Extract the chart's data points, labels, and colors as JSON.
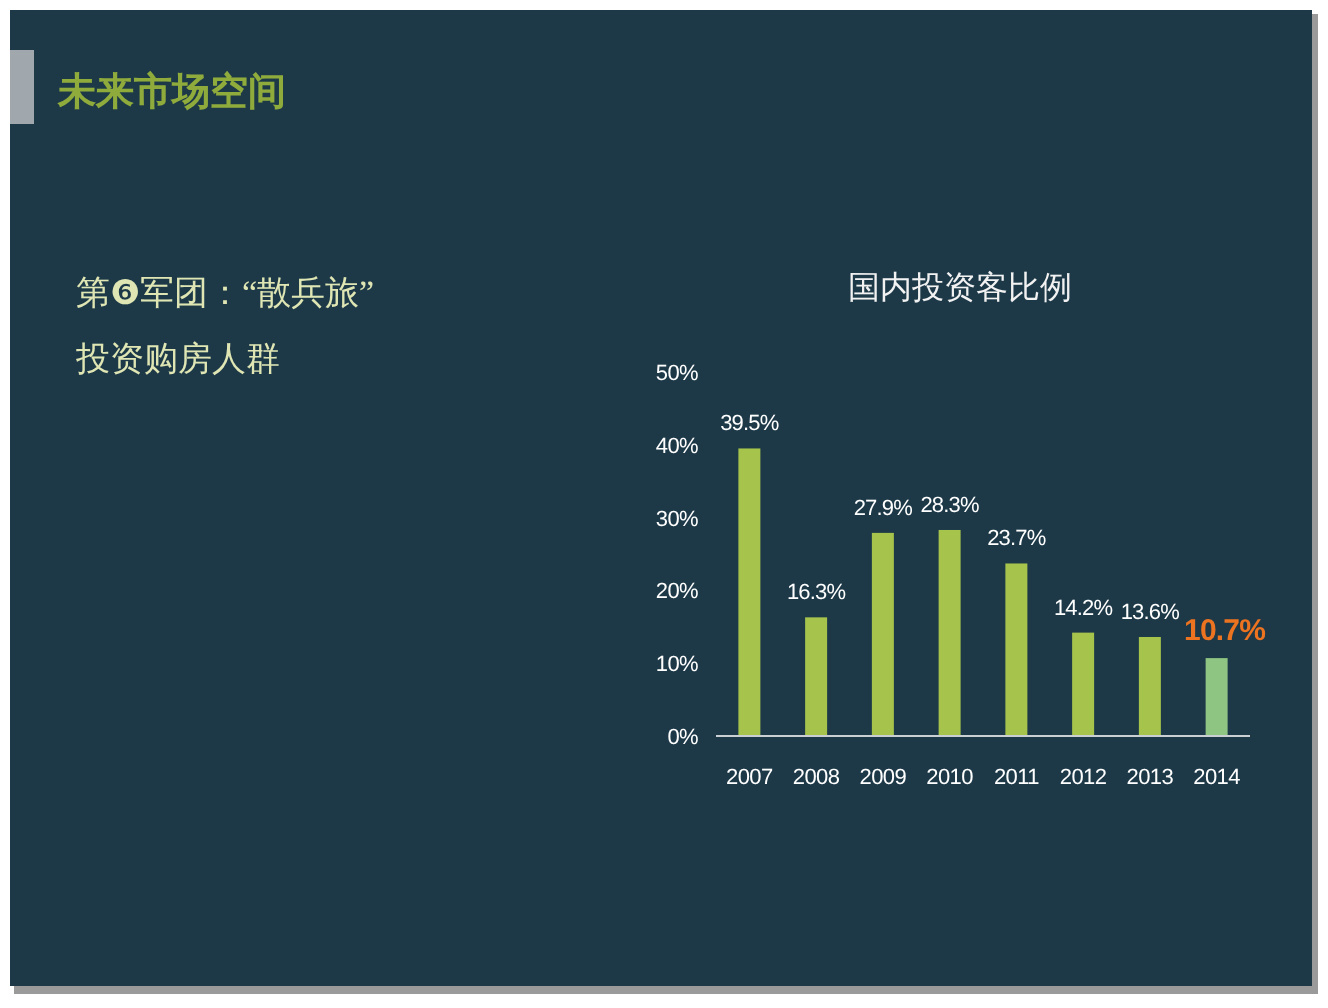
{
  "chart_data": {
    "type": "bar",
    "title": "国内投资客比例",
    "categories": [
      "2007",
      "2008",
      "2009",
      "2010",
      "2011",
      "2012",
      "2013",
      "2014"
    ],
    "values": [
      39.5,
      16.3,
      27.9,
      28.3,
      23.7,
      14.2,
      13.6,
      10.7
    ],
    "value_labels": [
      "39.5%",
      "16.3%",
      "27.9%",
      "28.3%",
      "23.7%",
      "14.2%",
      "13.6%",
      "10.7%"
    ],
    "colors": [
      "#a6c34c",
      "#a6c34c",
      "#a6c34c",
      "#a6c34c",
      "#a6c34c",
      "#a6c34c",
      "#a6c34c",
      "#8fc582"
    ],
    "ylim": [
      0,
      50
    ],
    "yticks": [
      {
        "value": 0,
        "label": "0%"
      },
      {
        "value": 10,
        "label": "10%"
      },
      {
        "value": 20,
        "label": "20%"
      },
      {
        "value": 30,
        "label": "30%"
      },
      {
        "value": 40,
        "label": "40%"
      },
      {
        "value": 50,
        "label": "50%"
      }
    ],
    "annotations": [
      "未来市场空间",
      "第❻军团：“散兵旅”",
      "投资购房人群"
    ]
  }
}
